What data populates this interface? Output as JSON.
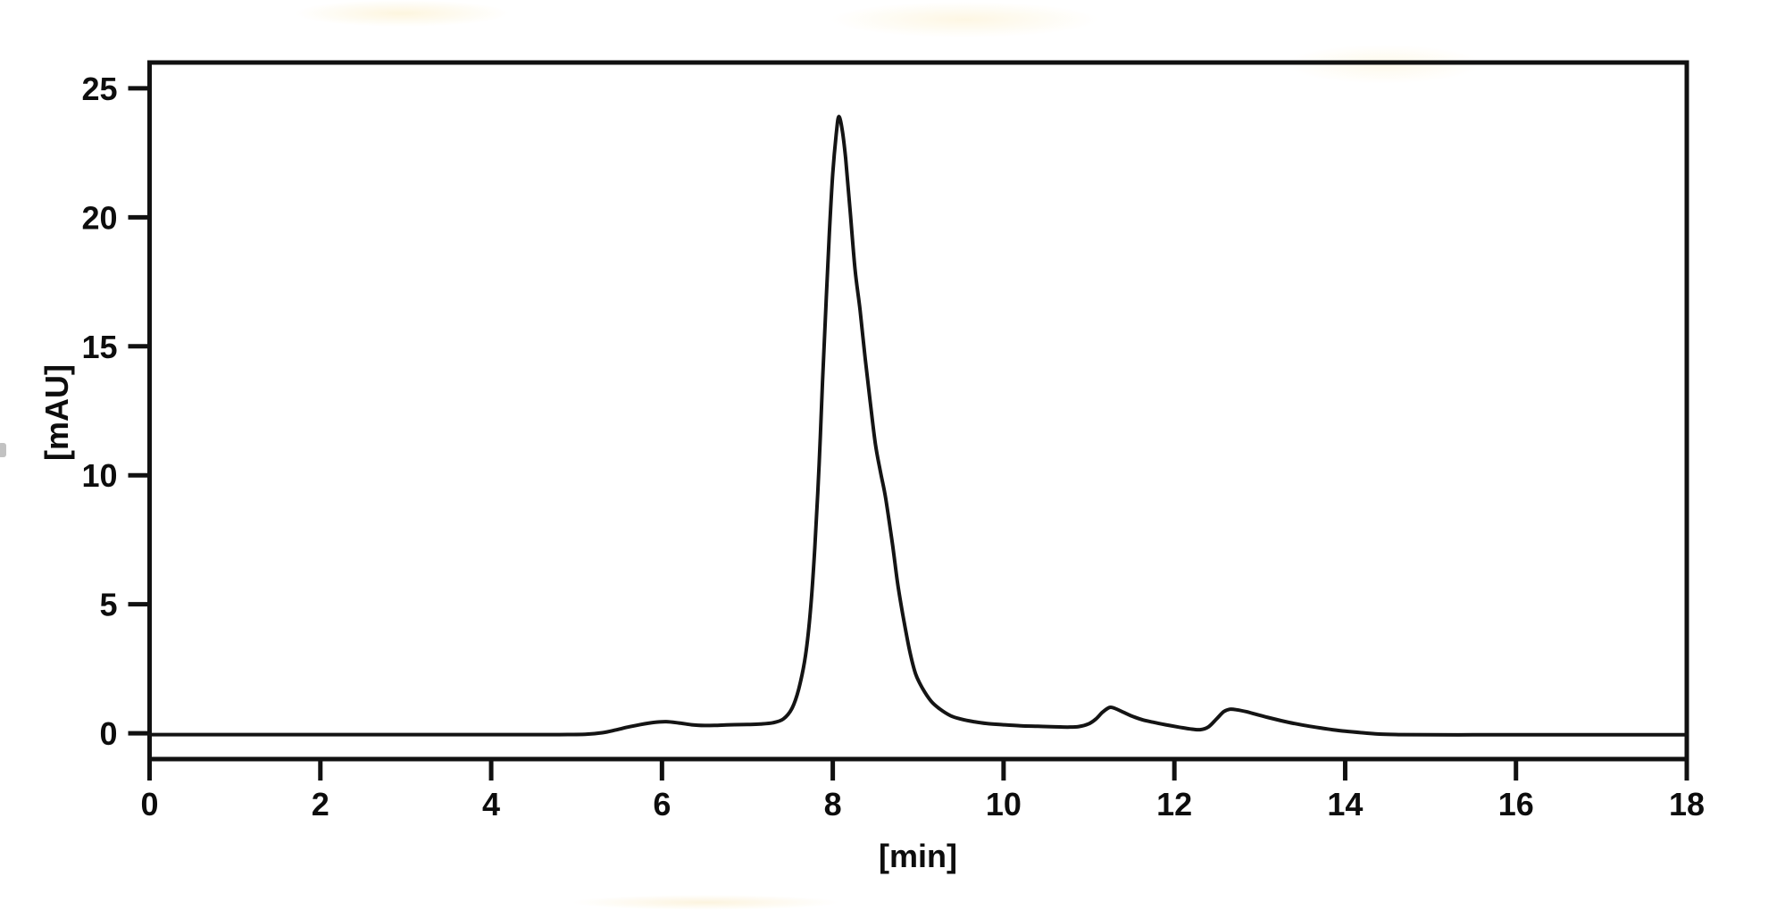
{
  "chart_data": {
    "type": "line",
    "title": "",
    "xlabel": "[min]",
    "ylabel": "[mAU]",
    "xlim": [
      0,
      18
    ],
    "ylim": [
      -1,
      26
    ],
    "x_ticks": [
      0,
      2,
      4,
      6,
      8,
      10,
      12,
      14,
      16,
      18
    ],
    "y_ticks": [
      0,
      5,
      10,
      15,
      20,
      25
    ],
    "grid": false,
    "legend_position": "none",
    "line_color": "#141414",
    "axis_color": "#111111",
    "background_color": "#ffffff",
    "peaks": [
      {
        "time_min": 6.05,
        "height_mAU": 0.45
      },
      {
        "time_min": 8.07,
        "height_mAU": 23.9
      },
      {
        "time_min": 11.24,
        "height_mAU": 1.0
      },
      {
        "time_min": 12.65,
        "height_mAU": 0.93
      }
    ],
    "series": [
      {
        "name": "absorbance-trace",
        "points": [
          [
            0.0,
            -0.05
          ],
          [
            0.5,
            -0.05
          ],
          [
            1.0,
            -0.05
          ],
          [
            1.5,
            -0.05
          ],
          [
            2.0,
            -0.05
          ],
          [
            2.5,
            -0.05
          ],
          [
            3.0,
            -0.05
          ],
          [
            3.5,
            -0.05
          ],
          [
            4.0,
            -0.05
          ],
          [
            4.5,
            -0.05
          ],
          [
            4.8,
            -0.05
          ],
          [
            5.1,
            -0.04
          ],
          [
            5.3,
            0.02
          ],
          [
            5.45,
            0.12
          ],
          [
            5.6,
            0.24
          ],
          [
            5.75,
            0.34
          ],
          [
            5.9,
            0.42
          ],
          [
            6.05,
            0.45
          ],
          [
            6.2,
            0.4
          ],
          [
            6.35,
            0.33
          ],
          [
            6.5,
            0.3
          ],
          [
            6.65,
            0.31
          ],
          [
            6.8,
            0.33
          ],
          [
            7.0,
            0.34
          ],
          [
            7.15,
            0.36
          ],
          [
            7.3,
            0.41
          ],
          [
            7.42,
            0.55
          ],
          [
            7.52,
            0.95
          ],
          [
            7.6,
            1.7
          ],
          [
            7.68,
            3.0
          ],
          [
            7.74,
            4.8
          ],
          [
            7.79,
            7.2
          ],
          [
            7.84,
            10.4
          ],
          [
            7.88,
            13.6
          ],
          [
            7.92,
            16.6
          ],
          [
            7.96,
            19.4
          ],
          [
            8.0,
            21.7
          ],
          [
            8.04,
            23.2
          ],
          [
            8.07,
            23.9
          ],
          [
            8.11,
            23.4
          ],
          [
            8.15,
            22.3
          ],
          [
            8.2,
            20.4
          ],
          [
            8.26,
            18.0
          ],
          [
            8.32,
            16.4
          ],
          [
            8.38,
            14.5
          ],
          [
            8.44,
            12.8
          ],
          [
            8.5,
            11.2
          ],
          [
            8.56,
            10.1
          ],
          [
            8.62,
            9.1
          ],
          [
            8.7,
            7.3
          ],
          [
            8.76,
            5.8
          ],
          [
            8.82,
            4.6
          ],
          [
            8.9,
            3.2
          ],
          [
            8.97,
            2.3
          ],
          [
            9.05,
            1.75
          ],
          [
            9.15,
            1.25
          ],
          [
            9.25,
            0.95
          ],
          [
            9.38,
            0.68
          ],
          [
            9.5,
            0.55
          ],
          [
            9.65,
            0.45
          ],
          [
            9.8,
            0.38
          ],
          [
            10.0,
            0.33
          ],
          [
            10.2,
            0.29
          ],
          [
            10.4,
            0.27
          ],
          [
            10.6,
            0.25
          ],
          [
            10.75,
            0.24
          ],
          [
            10.88,
            0.26
          ],
          [
            11.0,
            0.37
          ],
          [
            11.08,
            0.55
          ],
          [
            11.16,
            0.82
          ],
          [
            11.24,
            1.0
          ],
          [
            11.3,
            0.97
          ],
          [
            11.38,
            0.85
          ],
          [
            11.5,
            0.67
          ],
          [
            11.62,
            0.53
          ],
          [
            11.75,
            0.43
          ],
          [
            11.9,
            0.33
          ],
          [
            12.05,
            0.24
          ],
          [
            12.18,
            0.17
          ],
          [
            12.3,
            0.14
          ],
          [
            12.4,
            0.25
          ],
          [
            12.5,
            0.58
          ],
          [
            12.58,
            0.84
          ],
          [
            12.65,
            0.93
          ],
          [
            12.73,
            0.91
          ],
          [
            12.85,
            0.83
          ],
          [
            12.95,
            0.74
          ],
          [
            13.1,
            0.61
          ],
          [
            13.25,
            0.49
          ],
          [
            13.4,
            0.38
          ],
          [
            13.55,
            0.29
          ],
          [
            13.7,
            0.21
          ],
          [
            13.85,
            0.14
          ],
          [
            14.0,
            0.08
          ],
          [
            14.2,
            0.02
          ],
          [
            14.4,
            -0.03
          ],
          [
            14.65,
            -0.05
          ],
          [
            15.0,
            -0.06
          ],
          [
            15.5,
            -0.06
          ],
          [
            16.0,
            -0.06
          ],
          [
            16.5,
            -0.06
          ],
          [
            17.0,
            -0.06
          ],
          [
            17.5,
            -0.06
          ],
          [
            18.0,
            -0.06
          ]
        ]
      }
    ]
  }
}
